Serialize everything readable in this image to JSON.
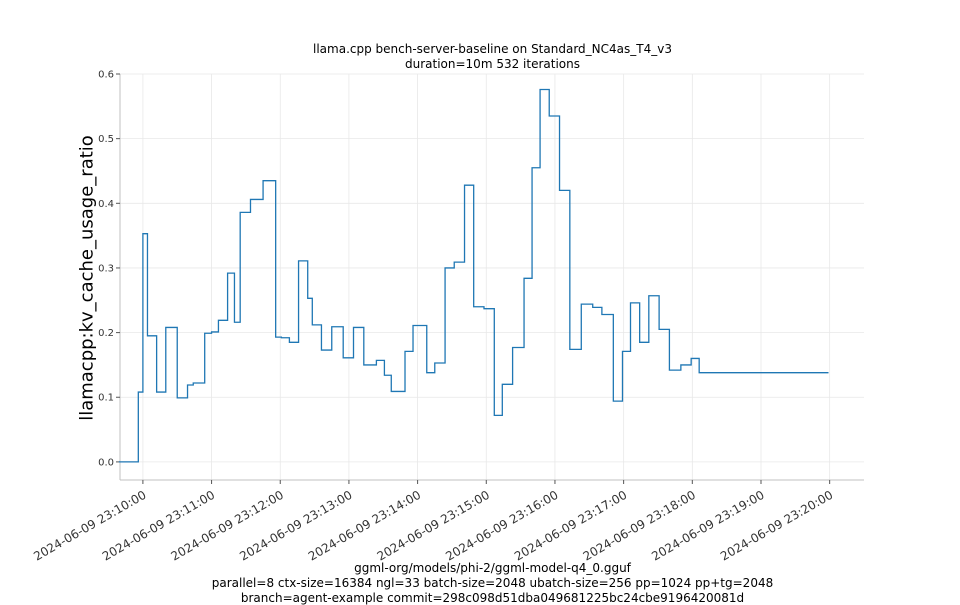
{
  "chart_data": {
    "type": "line",
    "title": "llama.cpp bench-server-baseline on Standard_NC4as_T4_v3",
    "subtitle": "duration=10m 532 iterations",
    "ylabel": "llamacpp:kv_cache_usage_ratio",
    "xlabel_lines": [
      "ggml-org/models/phi-2/ggml-model-q4_0.gguf",
      "parallel=8 ctx-size=16384 ngl=33 batch-size=2048 ubatch-size=256 pp=1024 pp+tg=2048",
      "branch=agent-example commit=298c098d51dba049681225bc24cbe9196420081d"
    ],
    "ylim": [
      -0.028,
      0.6
    ],
    "yticks": [
      0.0,
      0.1,
      0.2,
      0.3,
      0.4,
      0.5,
      0.6
    ],
    "ytick_labels": [
      "0.0",
      "0.1",
      "0.2",
      "0.3",
      "0.4",
      "0.5",
      "0.6"
    ],
    "xlim": [
      "2024-06-09 23:09:40",
      "2024-06-09 23:20:30"
    ],
    "xticks": [
      "2024-06-09 23:10:00",
      "2024-06-09 23:11:00",
      "2024-06-09 23:12:00",
      "2024-06-09 23:13:00",
      "2024-06-09 23:14:00",
      "2024-06-09 23:15:00",
      "2024-06-09 23:16:00",
      "2024-06-09 23:17:00",
      "2024-06-09 23:18:00",
      "2024-06-09 23:19:00",
      "2024-06-09 23:20:00"
    ],
    "xtick_labels": [
      "2024-06-09 23:10:00",
      "2024-06-09 23:11:00",
      "2024-06-09 23:12:00",
      "2024-06-09 23:13:00",
      "2024-06-09 23:14:00",
      "2024-06-09 23:15:00",
      "2024-06-09 23:16:00",
      "2024-06-09 23:17:00",
      "2024-06-09 23:18:00",
      "2024-06-09 23:19:00",
      "2024-06-09 23:20:00"
    ],
    "grid": true,
    "line_color": "#1f77b4",
    "series": [
      {
        "x": [
          "2024-06-09 23:09:39",
          "2024-06-09 23:09:49",
          "2024-06-09 23:09:56",
          "2024-06-09 23:10:00",
          "2024-06-09 23:10:04",
          "2024-06-09 23:10:12",
          "2024-06-09 23:10:20",
          "2024-06-09 23:10:30",
          "2024-06-09 23:10:39",
          "2024-06-09 23:10:44",
          "2024-06-09 23:10:54",
          "2024-06-09 23:11:00",
          "2024-06-09 23:11:06",
          "2024-06-09 23:11:14",
          "2024-06-09 23:11:20",
          "2024-06-09 23:11:25",
          "2024-06-09 23:11:34",
          "2024-06-09 23:11:45",
          "2024-06-09 23:11:56",
          "2024-06-09 23:12:01",
          "2024-06-09 23:12:08",
          "2024-06-09 23:12:16",
          "2024-06-09 23:12:24",
          "2024-06-09 23:12:28",
          "2024-06-09 23:12:36",
          "2024-06-09 23:12:45",
          "2024-06-09 23:12:55",
          "2024-06-09 23:13:04",
          "2024-06-09 23:13:13",
          "2024-06-09 23:13:24",
          "2024-06-09 23:13:31",
          "2024-06-09 23:13:37",
          "2024-06-09 23:13:49",
          "2024-06-09 23:13:56",
          "2024-06-09 23:14:08",
          "2024-06-09 23:14:15",
          "2024-06-09 23:14:24",
          "2024-06-09 23:14:32",
          "2024-06-09 23:14:41",
          "2024-06-09 23:14:49",
          "2024-06-09 23:14:58",
          "2024-06-09 23:15:07",
          "2024-06-09 23:15:14",
          "2024-06-09 23:15:23",
          "2024-06-09 23:15:33",
          "2024-06-09 23:15:40",
          "2024-06-09 23:15:47",
          "2024-06-09 23:15:55",
          "2024-06-09 23:16:04",
          "2024-06-09 23:16:13",
          "2024-06-09 23:16:23",
          "2024-06-09 23:16:33",
          "2024-06-09 23:16:41",
          "2024-06-09 23:16:51",
          "2024-06-09 23:16:59",
          "2024-06-09 23:17:06",
          "2024-06-09 23:17:14",
          "2024-06-09 23:17:22",
          "2024-06-09 23:17:31",
          "2024-06-09 23:17:40",
          "2024-06-09 23:17:50",
          "2024-06-09 23:17:59",
          "2024-06-09 23:18:06",
          "2024-06-09 23:18:13",
          "2024-06-09 23:18:20",
          "2024-06-09 23:18:27",
          "2024-06-09 23:18:36",
          "2024-06-09 23:18:45",
          "2024-06-09 23:18:52",
          "2024-06-09 23:18:59",
          "2024-06-09 23:19:06",
          "2024-06-09 23:19:15",
          "2024-06-09 23:19:22",
          "2024-06-09 23:19:31",
          "2024-06-09 23:19:38",
          "2024-06-09 23:19:47",
          "2024-06-09 23:19:55",
          "2024-06-09 23:19:59"
        ],
        "y": [
          0.0,
          0.0,
          0.108,
          0.353,
          0.195,
          0.108,
          0.208,
          0.099,
          0.119,
          0.122,
          0.199,
          0.201,
          0.219,
          0.292,
          0.216,
          0.386,
          0.406,
          0.435,
          0.193,
          0.192,
          0.185,
          0.311,
          0.253,
          0.212,
          0.173,
          0.209,
          0.161,
          0.208,
          0.15,
          0.157,
          0.134,
          0.109,
          0.171,
          0.211,
          0.138,
          0.153,
          0.3,
          0.309,
          0.428,
          0.24,
          0.237,
          0.072,
          0.12,
          0.177,
          0.284,
          0.455,
          0.576,
          0.535,
          0.42,
          0.174,
          0.244,
          0.239,
          0.228,
          0.094,
          0.171,
          0.246,
          0.185,
          0.257,
          0.205,
          0.142,
          0.15,
          0.16,
          0.138,
          0.138,
          0.138,
          0.138,
          0.138,
          0.138,
          0.138,
          0.138,
          0.138,
          0.138,
          0.138,
          0.138,
          0.138,
          0.138,
          0.138,
          0.138
        ]
      }
    ]
  }
}
